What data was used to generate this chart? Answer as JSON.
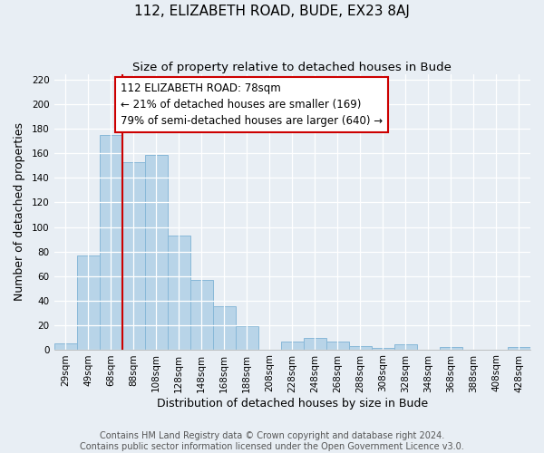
{
  "title": "112, ELIZABETH ROAD, BUDE, EX23 8AJ",
  "subtitle": "Size of property relative to detached houses in Bude",
  "xlabel": "Distribution of detached houses by size in Bude",
  "ylabel": "Number of detached properties",
  "footer_line1": "Contains HM Land Registry data © Crown copyright and database right 2024.",
  "footer_line2": "Contains public sector information licensed under the Open Government Licence v3.0.",
  "bar_labels": [
    "29sqm",
    "49sqm",
    "68sqm",
    "88sqm",
    "108sqm",
    "128sqm",
    "148sqm",
    "168sqm",
    "188sqm",
    "208sqm",
    "228sqm",
    "248sqm",
    "268sqm",
    "288sqm",
    "308sqm",
    "328sqm",
    "348sqm",
    "368sqm",
    "388sqm",
    "408sqm",
    "428sqm"
  ],
  "bar_values": [
    5,
    77,
    175,
    153,
    159,
    93,
    57,
    35,
    19,
    0,
    6,
    9,
    6,
    3,
    1,
    4,
    0,
    2,
    0,
    0,
    2
  ],
  "bar_color": "#b8d4e8",
  "bar_edge_color": "#88b8d8",
  "reference_line_color": "#cc0000",
  "reference_line_bar_index": 2,
  "annotation_title": "112 ELIZABETH ROAD: 78sqm",
  "annotation_line1": "← 21% of detached houses are smaller (169)",
  "annotation_line2": "79% of semi-detached houses are larger (640) →",
  "annotation_box_edge_color": "#cc0000",
  "ylim": [
    0,
    225
  ],
  "yticks": [
    0,
    20,
    40,
    60,
    80,
    100,
    120,
    140,
    160,
    180,
    200,
    220
  ],
  "background_color": "#e8eef4",
  "plot_background_color": "#e8eef4",
  "title_fontsize": 11,
  "subtitle_fontsize": 9.5,
  "axis_label_fontsize": 9,
  "tick_fontsize": 7.5,
  "footer_fontsize": 7
}
